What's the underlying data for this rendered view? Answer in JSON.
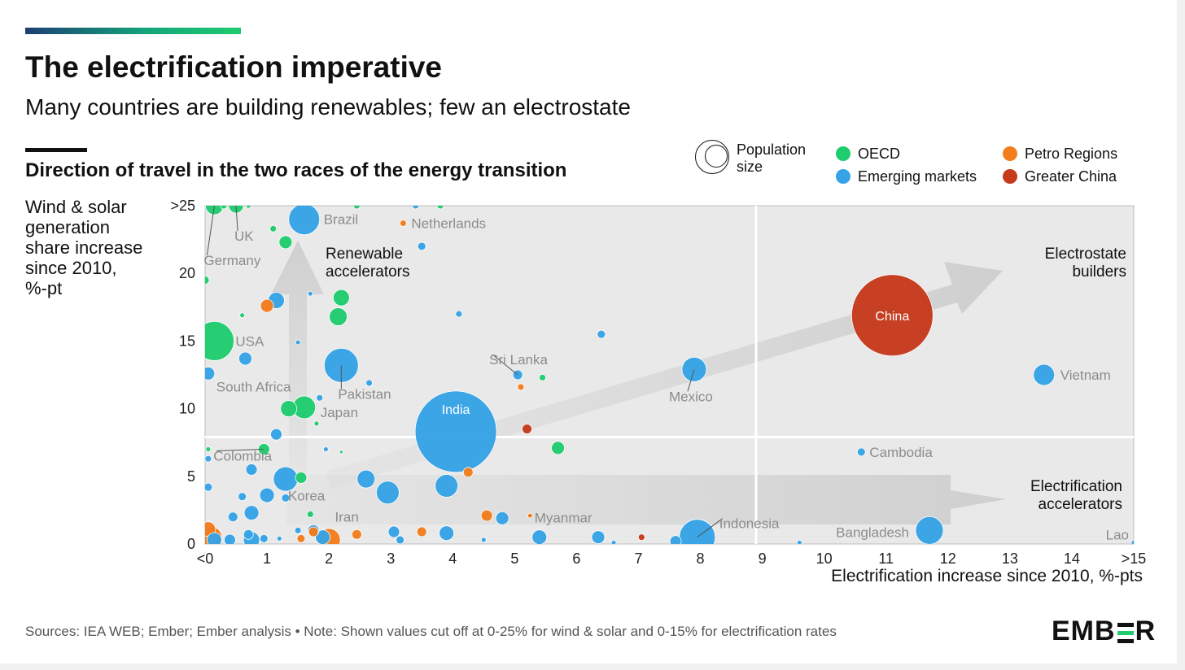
{
  "header": {
    "title": "The electrification imperative",
    "subtitle": "Many countries are building renewables; few an electrostate",
    "chart_heading": "Direction of travel in the two races of the energy transition"
  },
  "legend": {
    "population_label": "Population\nsize",
    "population_line1": "Population",
    "population_line2": "size",
    "items": [
      {
        "label": "OECD",
        "color": "#1fcc6e"
      },
      {
        "label": "Emerging markets",
        "color": "#36a3e6"
      },
      {
        "label": "Petro Regions",
        "color": "#f27d1c"
      },
      {
        "label": "Greater China",
        "color": "#c63a1c"
      }
    ]
  },
  "footer": {
    "sources": "Sources: IEA WEB; Ember; Ember analysis • Note: Shown values cut off at 0-25% for wind & solar and 0-15% for electrification rates",
    "logo": "EMBER"
  },
  "chart_data": {
    "type": "scatter",
    "xlabel": "Electrification increase since 2010, %-pts",
    "ylabel": "Wind & solar generation share increase since 2010, %-pt",
    "ylabel_lines": [
      "Wind & solar",
      "generation",
      "share increase",
      "since 2010,",
      "%-pt"
    ],
    "xlim": [
      0,
      15
    ],
    "ylim": [
      0,
      25
    ],
    "x_ticks": [
      "<0",
      "1",
      "2",
      "3",
      "4",
      "5",
      "6",
      "7",
      "8",
      "9",
      "10",
      "11",
      "12",
      "13",
      "14",
      ">15"
    ],
    "y_ticks": [
      {
        "v": 0,
        "label": "0"
      },
      {
        "v": 5,
        "label": "5"
      },
      {
        "v": 10,
        "label": "10"
      },
      {
        "v": 15,
        "label": "15"
      },
      {
        "v": 20,
        "label": "20"
      },
      {
        "v": 25,
        "label": ">25"
      }
    ],
    "quadrant_divider": {
      "x": 8.9,
      "y": 7.9
    },
    "quadrant_labels": [
      {
        "lines": [
          "Renewable",
          "accelerators"
        ]
      },
      {
        "lines": [
          "Electrostate",
          "builders"
        ]
      },
      {
        "lines": [
          "Electrification",
          "accelerators"
        ]
      }
    ],
    "groups": {
      "oecd": "#1fcc6e",
      "emerging": "#36a3e6",
      "petro": "#f27d1c",
      "china": "#c63a1c"
    },
    "points": [
      {
        "x": 11.1,
        "y": 16.9,
        "size": 50,
        "group": "china",
        "label": "China"
      },
      {
        "x": 4.05,
        "y": 8.3,
        "size": 50,
        "group": "emerging",
        "label": "India"
      },
      {
        "x": 13.55,
        "y": 12.5,
        "size": 13,
        "group": "emerging",
        "label": "Vietnam"
      },
      {
        "x": 7.9,
        "y": 12.9,
        "size": 15,
        "group": "emerging",
        "label": "Mexico"
      },
      {
        "x": 10.6,
        "y": 6.8,
        "size": 5,
        "group": "emerging",
        "label": "Cambodia"
      },
      {
        "x": 11.7,
        "y": 1.0,
        "size": 17,
        "group": "emerging",
        "label": "Bangladesh"
      },
      {
        "x": 7.95,
        "y": 0.5,
        "size": 22,
        "group": "emerging",
        "label": "Indonesia"
      },
      {
        "x": 15.0,
        "y": 0.1,
        "size": 3,
        "group": "emerging",
        "label": "Lao"
      },
      {
        "x": 5.4,
        "y": 0.5,
        "size": 9,
        "group": "emerging",
        "label": "Myanmar"
      },
      {
        "x": 1.55,
        "y": 4.9,
        "size": 7,
        "group": "oecd",
        "label": "Korea"
      },
      {
        "x": 1.6,
        "y": 10.1,
        "size": 14,
        "group": "oecd",
        "label": "Japan"
      },
      {
        "x": 2.2,
        "y": 13.2,
        "size": 21,
        "group": "emerging",
        "label": "Pakistan"
      },
      {
        "x": 0.15,
        "y": 15.0,
        "size": 24,
        "group": "oecd",
        "label": "USA"
      },
      {
        "x": 0.05,
        "y": 12.6,
        "size": 8,
        "group": "emerging",
        "label": "South Africa"
      },
      {
        "x": 1.6,
        "y": 24.0,
        "size": 19,
        "group": "emerging",
        "label": "Brazil"
      },
      {
        "x": 3.2,
        "y": 23.7,
        "size": 4,
        "group": "petro",
        "label": "Netherlands"
      },
      {
        "x": 0.5,
        "y": 25.0,
        "size": 9,
        "group": "oecd",
        "label": "UK"
      },
      {
        "x": 0.15,
        "y": 25.0,
        "size": 11,
        "group": "oecd",
        "label": "Germany"
      },
      {
        "x": 0.95,
        "y": 7.0,
        "size": 7,
        "group": "oecd",
        "label": "Colombia"
      },
      {
        "x": 1.9,
        "y": 0.5,
        "size": 9,
        "group": "emerging",
        "label": "Iran"
      },
      {
        "x": 5.2,
        "y": 8.5,
        "size": 6,
        "group": "china",
        "label": ""
      },
      {
        "x": 7.05,
        "y": 0.5,
        "size": 4,
        "group": "china",
        "label": ""
      },
      {
        "x": 5.7,
        "y": 7.1,
        "size": 8,
        "group": "oecd",
        "label": ""
      },
      {
        "x": 5.45,
        "y": 12.3,
        "size": 4,
        "group": "oecd",
        "label": ""
      },
      {
        "x": 6.4,
        "y": 15.5,
        "size": 5,
        "group": "emerging",
        "label": ""
      },
      {
        "x": 5.05,
        "y": 12.5,
        "size": 6,
        "group": "emerging",
        "label": ""
      },
      {
        "x": 5.1,
        "y": 11.6,
        "size": 4,
        "group": "petro",
        "label": ""
      },
      {
        "x": 4.1,
        "y": 17.0,
        "size": 4,
        "group": "emerging",
        "label": ""
      },
      {
        "x": 6.35,
        "y": 0.5,
        "size": 8,
        "group": "emerging",
        "label": ""
      },
      {
        "x": 3.9,
        "y": 4.3,
        "size": 14,
        "group": "emerging",
        "label": ""
      },
      {
        "x": 4.25,
        "y": 5.3,
        "size": 6,
        "group": "petro",
        "label": ""
      },
      {
        "x": 2.95,
        "y": 3.8,
        "size": 14,
        "group": "emerging",
        "label": ""
      },
      {
        "x": 2.6,
        "y": 4.8,
        "size": 11,
        "group": "emerging",
        "label": ""
      },
      {
        "x": 3.9,
        "y": 0.8,
        "size": 9,
        "group": "emerging",
        "label": ""
      },
      {
        "x": 3.5,
        "y": 0.9,
        "size": 6,
        "group": "petro",
        "label": ""
      },
      {
        "x": 3.05,
        "y": 0.9,
        "size": 7,
        "group": "emerging",
        "label": ""
      },
      {
        "x": 3.15,
        "y": 0.3,
        "size": 5,
        "group": "emerging",
        "label": ""
      },
      {
        "x": 4.55,
        "y": 2.1,
        "size": 7,
        "group": "petro",
        "label": ""
      },
      {
        "x": 4.8,
        "y": 1.9,
        "size": 8,
        "group": "emerging",
        "label": ""
      },
      {
        "x": 5.25,
        "y": 2.1,
        "size": 3,
        "group": "petro",
        "label": ""
      },
      {
        "x": 2.45,
        "y": 0.7,
        "size": 6,
        "group": "petro",
        "label": ""
      },
      {
        "x": 2.0,
        "y": 0.3,
        "size": 14,
        "group": "petro",
        "label": ""
      },
      {
        "x": 1.75,
        "y": 0.9,
        "size": 6,
        "group": "petro",
        "label": ""
      },
      {
        "x": 1.3,
        "y": 4.8,
        "size": 15,
        "group": "emerging",
        "label": ""
      },
      {
        "x": 1.3,
        "y": 3.4,
        "size": 5,
        "group": "emerging",
        "label": ""
      },
      {
        "x": 1.0,
        "y": 3.6,
        "size": 9,
        "group": "emerging",
        "label": ""
      },
      {
        "x": 0.75,
        "y": 5.5,
        "size": 7,
        "group": "emerging",
        "label": ""
      },
      {
        "x": 1.15,
        "y": 8.1,
        "size": 7,
        "group": "emerging",
        "label": ""
      },
      {
        "x": 0.75,
        "y": 2.3,
        "size": 9,
        "group": "emerging",
        "label": ""
      },
      {
        "x": 0.45,
        "y": 2.0,
        "size": 6,
        "group": "emerging",
        "label": ""
      },
      {
        "x": 0.6,
        "y": 3.5,
        "size": 5,
        "group": "emerging",
        "label": ""
      },
      {
        "x": 0.7,
        "y": 0.7,
        "size": 6,
        "group": "emerging",
        "label": ""
      },
      {
        "x": 0.4,
        "y": 0.3,
        "size": 7,
        "group": "emerging",
        "label": ""
      },
      {
        "x": 0.75,
        "y": 0.3,
        "size": 10,
        "group": "emerging",
        "label": ""
      },
      {
        "x": 0.95,
        "y": 0.4,
        "size": 5,
        "group": "emerging",
        "label": ""
      },
      {
        "x": 0.1,
        "y": 0.5,
        "size": 13,
        "group": "petro",
        "label": ""
      },
      {
        "x": 0.05,
        "y": 1.1,
        "size": 9,
        "group": "petro",
        "label": ""
      },
      {
        "x": 0.15,
        "y": 0.3,
        "size": 9,
        "group": "emerging",
        "label": ""
      },
      {
        "x": 1.75,
        "y": 1.0,
        "size": 7,
        "group": "emerging",
        "label": ""
      },
      {
        "x": 1.55,
        "y": 0.4,
        "size": 5,
        "group": "petro",
        "label": ""
      },
      {
        "x": 1.5,
        "y": 1.0,
        "size": 4,
        "group": "emerging",
        "label": ""
      },
      {
        "x": 1.7,
        "y": 2.2,
        "size": 4,
        "group": "oecd",
        "label": ""
      },
      {
        "x": 1.2,
        "y": 0.4,
        "size": 3,
        "group": "emerging",
        "label": ""
      },
      {
        "x": 0.05,
        "y": 4.2,
        "size": 5,
        "group": "emerging",
        "label": ""
      },
      {
        "x": 0.05,
        "y": 6.3,
        "size": 4,
        "group": "emerging",
        "label": ""
      },
      {
        "x": 0.05,
        "y": 7.0,
        "size": 3,
        "group": "oecd",
        "label": ""
      },
      {
        "x": 0.0,
        "y": 19.5,
        "size": 5,
        "group": "oecd",
        "label": ""
      },
      {
        "x": 1.15,
        "y": 18.0,
        "size": 10,
        "group": "emerging",
        "label": ""
      },
      {
        "x": 1.0,
        "y": 17.6,
        "size": 8,
        "group": "petro",
        "label": ""
      },
      {
        "x": 2.2,
        "y": 18.2,
        "size": 10,
        "group": "oecd",
        "label": ""
      },
      {
        "x": 2.15,
        "y": 16.8,
        "size": 11,
        "group": "oecd",
        "label": ""
      },
      {
        "x": 1.3,
        "y": 22.3,
        "size": 8,
        "group": "oecd",
        "label": ""
      },
      {
        "x": 1.1,
        "y": 23.3,
        "size": 4,
        "group": "oecd",
        "label": ""
      },
      {
        "x": 0.6,
        "y": 16.9,
        "size": 3,
        "group": "oecd",
        "label": ""
      },
      {
        "x": 0.65,
        "y": 13.7,
        "size": 8,
        "group": "emerging",
        "label": ""
      },
      {
        "x": 1.35,
        "y": 10.0,
        "size": 10,
        "group": "oecd",
        "label": ""
      },
      {
        "x": 2.65,
        "y": 11.9,
        "size": 4,
        "group": "emerging",
        "label": ""
      },
      {
        "x": 1.85,
        "y": 10.8,
        "size": 4,
        "group": "emerging",
        "label": ""
      },
      {
        "x": 3.5,
        "y": 22.0,
        "size": 5,
        "group": "emerging",
        "label": ""
      },
      {
        "x": 1.7,
        "y": 18.5,
        "size": 3,
        "group": "emerging",
        "label": ""
      },
      {
        "x": 1.5,
        "y": 14.9,
        "size": 3,
        "group": "emerging",
        "label": ""
      },
      {
        "x": 1.8,
        "y": 8.9,
        "size": 3,
        "group": "oecd",
        "label": ""
      },
      {
        "x": 1.95,
        "y": 7.0,
        "size": 3,
        "group": "emerging",
        "label": ""
      },
      {
        "x": 2.2,
        "y": 6.8,
        "size": 2,
        "group": "oecd",
        "label": ""
      },
      {
        "x": 0.3,
        "y": 25.0,
        "size": 4,
        "group": "oecd",
        "label": ""
      },
      {
        "x": 0.7,
        "y": 25.0,
        "size": 3,
        "group": "oecd",
        "label": ""
      },
      {
        "x": 2.45,
        "y": 25.0,
        "size": 4,
        "group": "oecd",
        "label": ""
      },
      {
        "x": 3.4,
        "y": 25.0,
        "size": 4,
        "group": "emerging",
        "label": ""
      },
      {
        "x": 3.8,
        "y": 25.0,
        "size": 4,
        "group": "oecd",
        "label": ""
      },
      {
        "x": 6.6,
        "y": 0.1,
        "size": 3,
        "group": "emerging",
        "label": ""
      },
      {
        "x": 7.6,
        "y": 0.2,
        "size": 7,
        "group": "emerging",
        "label": ""
      },
      {
        "x": 9.6,
        "y": 0.1,
        "size": 3,
        "group": "emerging",
        "label": ""
      },
      {
        "x": 4.5,
        "y": 0.3,
        "size": 3,
        "group": "emerging",
        "label": ""
      }
    ],
    "labels": [
      {
        "text": "China",
        "x": 11.1,
        "y": 16.9,
        "dx": 0,
        "dy": 0,
        "anchor": "middle",
        "inside": true,
        "size": 16
      },
      {
        "text": "India",
        "x": 4.05,
        "y": 8.3,
        "dx": 0,
        "dy": -28,
        "anchor": "middle",
        "inside": true,
        "size": 16
      },
      {
        "text": "Vietnam",
        "x": 13.55,
        "y": 12.5,
        "dx": 20,
        "dy": 0,
        "anchor": "start"
      },
      {
        "text": "Mexico",
        "x": 7.9,
        "y": 12.9,
        "dx": -4,
        "dy": 33,
        "anchor": "middle"
      },
      {
        "text": "Cambodia",
        "x": 10.6,
        "y": 6.8,
        "dx": 10,
        "dy": 0,
        "anchor": "start"
      },
      {
        "text": "Bangladesh",
        "x": 11.7,
        "y": 1.0,
        "dx": -25,
        "dy": 2,
        "anchor": "end"
      },
      {
        "text": "Indonesia",
        "x": 7.95,
        "y": 0.5,
        "dx": 27,
        "dy": -17,
        "anchor": "start"
      },
      {
        "text": "Lao",
        "x": 15.0,
        "y": 0.1,
        "dx": -6,
        "dy": -10,
        "anchor": "end"
      },
      {
        "text": "Myanmar",
        "x": 5.4,
        "y": 0.5,
        "dx": -6,
        "dy": -24,
        "anchor": "start"
      },
      {
        "text": "Sri Lanka",
        "x": 5.05,
        "y": 12.5,
        "dx": -35,
        "dy": -19,
        "anchor": "start"
      },
      {
        "text": "Korea",
        "x": 1.55,
        "y": 4.9,
        "dx": -16,
        "dy": 22,
        "anchor": "start"
      },
      {
        "text": "Japan",
        "x": 1.6,
        "y": 10.1,
        "dx": 20,
        "dy": 6,
        "anchor": "start"
      },
      {
        "text": "Pakistan",
        "x": 2.2,
        "y": 13.2,
        "dx": -4,
        "dy": 35,
        "anchor": "start"
      },
      {
        "text": "USA",
        "x": 0.15,
        "y": 15.0,
        "dx": 26,
        "dy": 0,
        "anchor": "start"
      },
      {
        "text": "South Africa",
        "x": 0.05,
        "y": 12.6,
        "dx": 10,
        "dy": 16,
        "anchor": "start"
      },
      {
        "text": "Brazil",
        "x": 1.6,
        "y": 24.0,
        "dx": 24,
        "dy": 0,
        "anchor": "start"
      },
      {
        "text": "Netherlands",
        "x": 3.2,
        "y": 23.7,
        "dx": 10,
        "dy": 0,
        "anchor": "start"
      },
      {
        "text": "UK",
        "x": 0.5,
        "y": 25.0,
        "dx": -2,
        "dy": 37,
        "anchor": "start"
      },
      {
        "text": "Germany",
        "x": 0.15,
        "y": 25.0,
        "dx": -13,
        "dy": 67,
        "anchor": "start"
      },
      {
        "text": "Colombia",
        "x": 0.95,
        "y": 7.0,
        "dx": -62,
        "dy": 8,
        "anchor": "start"
      },
      {
        "text": "Iran",
        "x": 1.9,
        "y": 0.5,
        "dx": 15,
        "dy": -25,
        "anchor": "start"
      }
    ]
  }
}
